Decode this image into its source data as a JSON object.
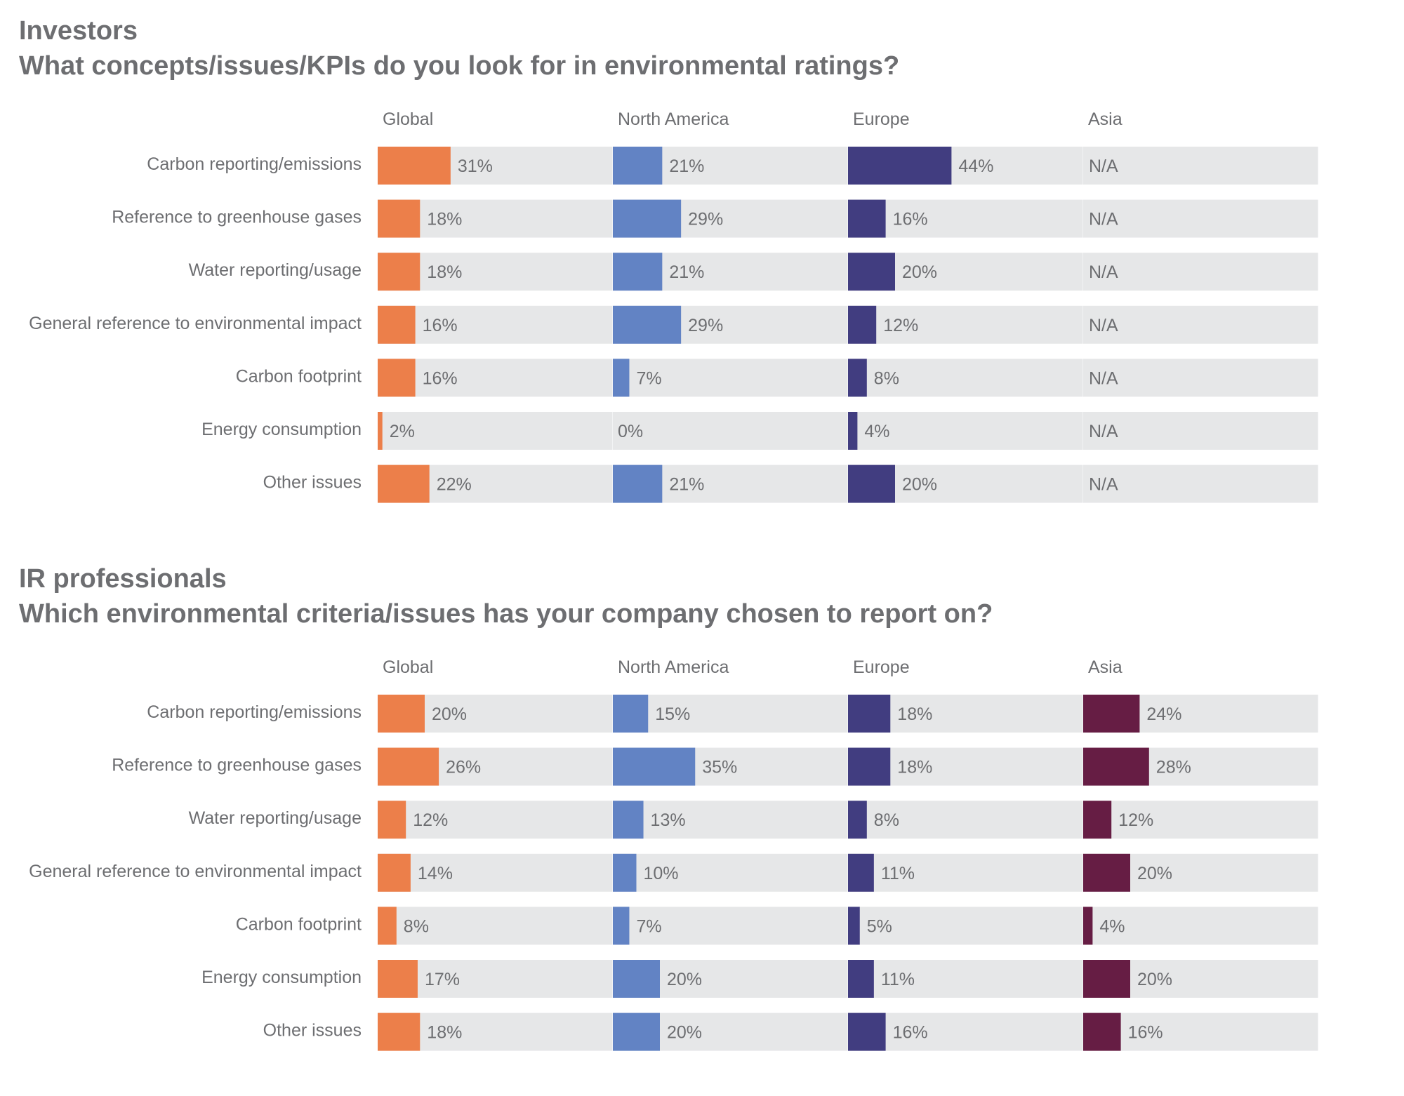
{
  "chart_data": [
    {
      "type": "bar",
      "title": "Investors",
      "subtitle": "What concepts/issues/KPIs do you look for in environmental ratings?",
      "categories": [
        "Carbon reporting/emissions",
        "Reference to greenhouse gases",
        "Water reporting/usage",
        "General reference to environmental impact",
        "Carbon footprint",
        "Energy consumption",
        "Other issues"
      ],
      "series": [
        {
          "name": "Global",
          "color": "#ec7f4a",
          "values": [
            31,
            18,
            18,
            16,
            16,
            2,
            22
          ],
          "labels": [
            "31%",
            "18%",
            "18%",
            "16%",
            "16%",
            "2%",
            "22%"
          ]
        },
        {
          "name": "North America",
          "color": "#6283c4",
          "values": [
            21,
            29,
            21,
            29,
            7,
            0,
            21
          ],
          "labels": [
            "21%",
            "29%",
            "21%",
            "29%",
            "7%",
            "0%",
            "21%"
          ]
        },
        {
          "name": "Europe",
          "color": "#413d80",
          "values": [
            44,
            16,
            20,
            12,
            8,
            4,
            20
          ],
          "labels": [
            "44%",
            "16%",
            "20%",
            "12%",
            "8%",
            "4%",
            "20%"
          ]
        },
        {
          "name": "Asia",
          "color": "#661d44",
          "values": [
            null,
            null,
            null,
            null,
            null,
            null,
            null
          ],
          "labels": [
            "N/A",
            "N/A",
            "N/A",
            "N/A",
            "N/A",
            "N/A",
            "N/A"
          ]
        }
      ],
      "xlim": [
        0,
        100
      ],
      "grid": false
    },
    {
      "type": "bar",
      "title": "IR professionals",
      "subtitle": "Which environmental criteria/issues has your company chosen to report on?",
      "categories": [
        "Carbon reporting/emissions",
        "Reference to greenhouse gases",
        "Water reporting/usage",
        "General reference to environmental impact",
        "Carbon footprint",
        "Energy consumption",
        "Other issues"
      ],
      "series": [
        {
          "name": "Global",
          "color": "#ec7f4a",
          "values": [
            20,
            26,
            12,
            14,
            8,
            17,
            18
          ],
          "labels": [
            "20%",
            "26%",
            "12%",
            "14%",
            "8%",
            "17%",
            "18%"
          ]
        },
        {
          "name": "North America",
          "color": "#6283c4",
          "values": [
            15,
            35,
            13,
            10,
            7,
            20,
            20
          ],
          "labels": [
            "15%",
            "35%",
            "13%",
            "10%",
            "7%",
            "20%",
            "20%"
          ]
        },
        {
          "name": "Europe",
          "color": "#413d80",
          "values": [
            18,
            18,
            8,
            11,
            5,
            11,
            16
          ],
          "labels": [
            "18%",
            "18%",
            "8%",
            "11%",
            "5%",
            "11%",
            "16%"
          ]
        },
        {
          "name": "Asia",
          "color": "#661d44",
          "values": [
            24,
            28,
            12,
            20,
            4,
            20,
            16
          ],
          "labels": [
            "24%",
            "28%",
            "12%",
            "20%",
            "4%",
            "20%",
            "16%"
          ]
        }
      ],
      "xlim": [
        0,
        100
      ],
      "grid": false
    }
  ],
  "colors": {
    "text": "#6d6e71",
    "track": "#e6e7e8"
  }
}
